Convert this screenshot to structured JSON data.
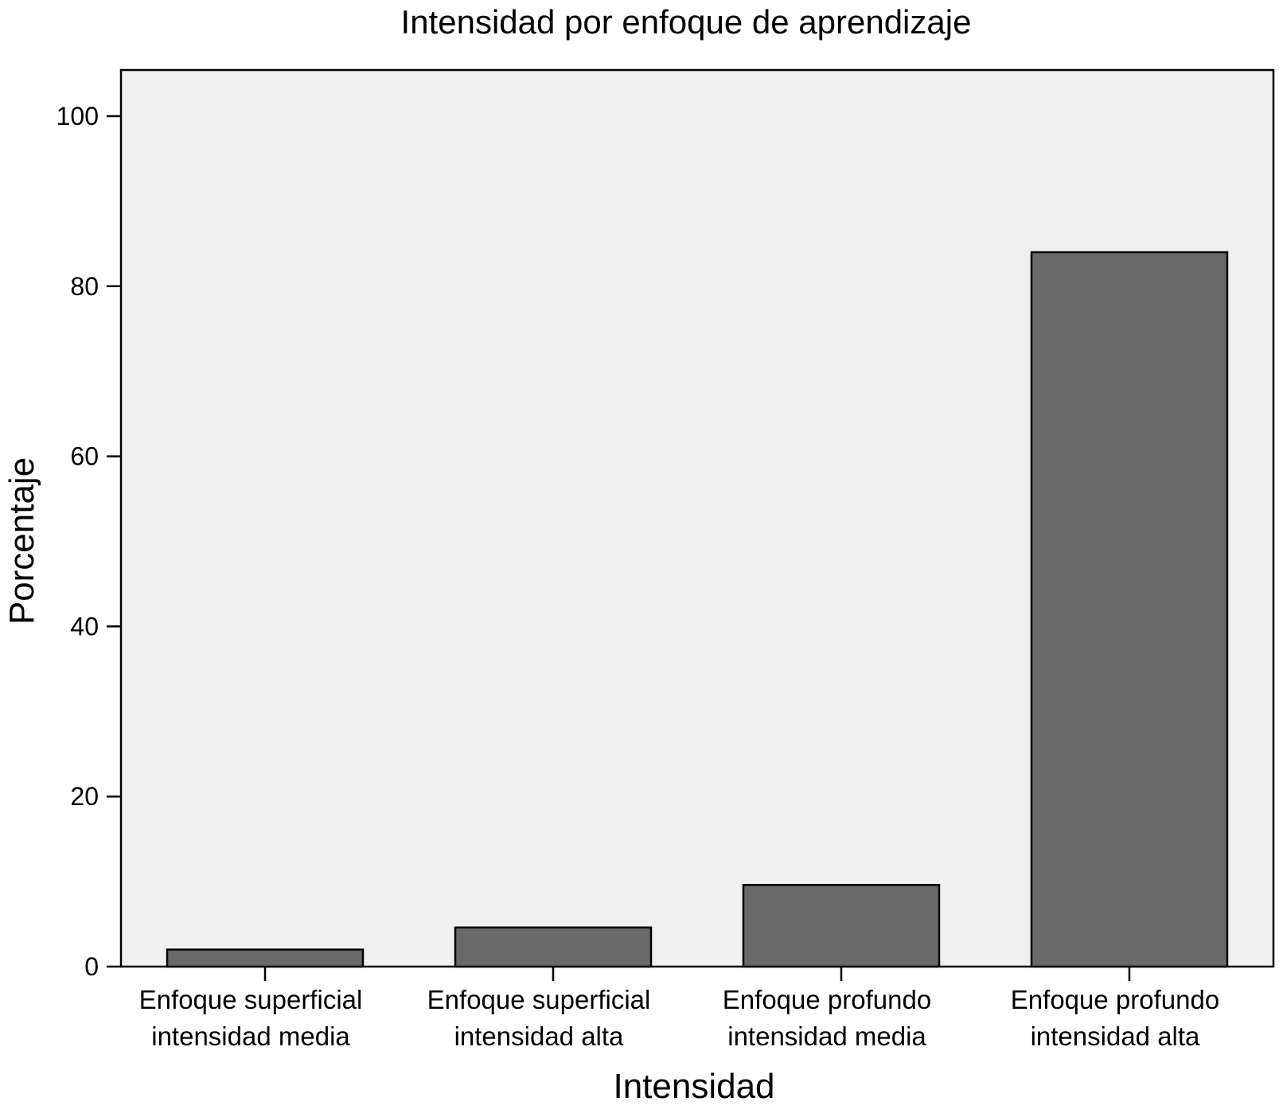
{
  "chart_data": {
    "type": "bar",
    "title": "Intensidad por enfoque de aprendizaje",
    "xlabel": "Intensidad",
    "ylabel": "Porcentaje",
    "categories": [
      [
        "Enfoque superficial",
        "intensidad media"
      ],
      [
        "Enfoque superficial",
        "intensidad alta"
      ],
      [
        "Enfoque profundo",
        "intensidad media"
      ],
      [
        "Enfoque profundo",
        "intensidad alta"
      ]
    ],
    "values": [
      2.0,
      4.6,
      9.6,
      84.0
    ],
    "ylim": [
      0,
      105
    ],
    "yticks": [
      0,
      20,
      40,
      60,
      80,
      100
    ],
    "grid": false,
    "legend": "none",
    "colors": {
      "bar_fill": "#696969",
      "bar_stroke": "#000000",
      "plot_background": "#f0f0f0",
      "axis": "#000000"
    }
  }
}
